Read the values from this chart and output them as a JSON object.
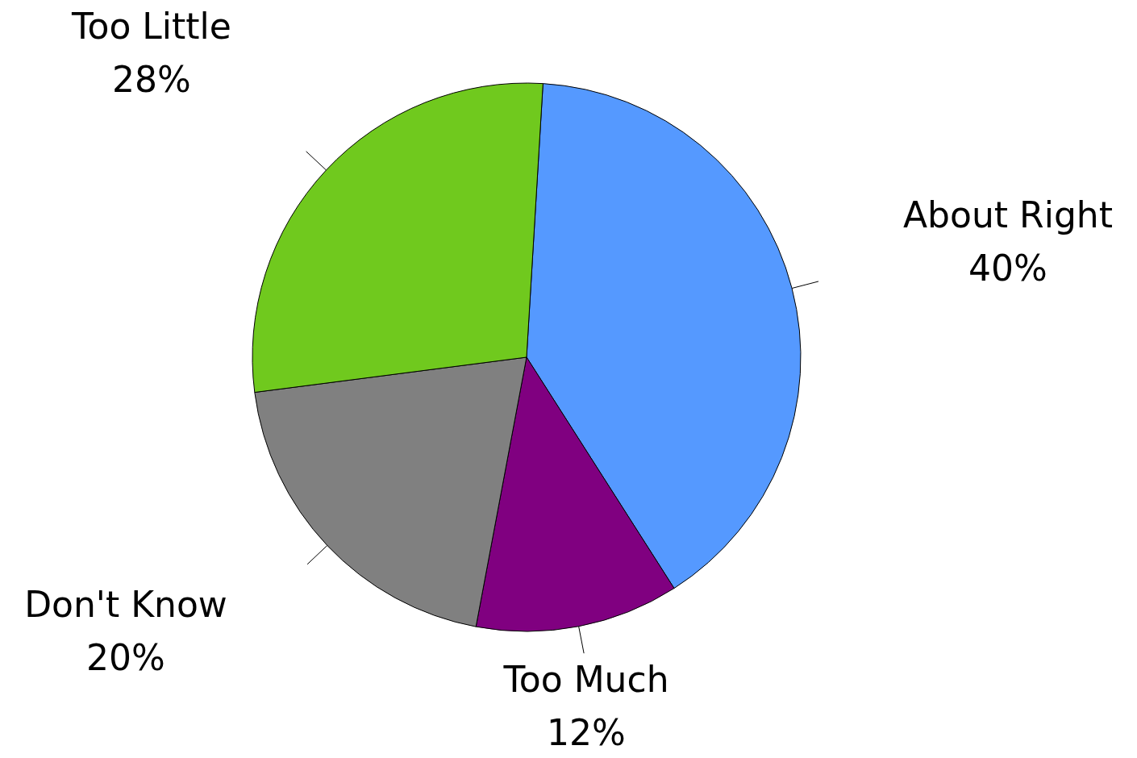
{
  "chart_data": {
    "type": "pie",
    "categories": [
      "About Right",
      "Too Much",
      "Don't Know",
      "Too Little"
    ],
    "values": [
      40,
      12,
      20,
      28
    ],
    "colors": [
      "#5599ff",
      "#800080",
      "#808080",
      "#70c91e"
    ],
    "value_labels": [
      "40%",
      "12%",
      "20%",
      "28%"
    ]
  }
}
